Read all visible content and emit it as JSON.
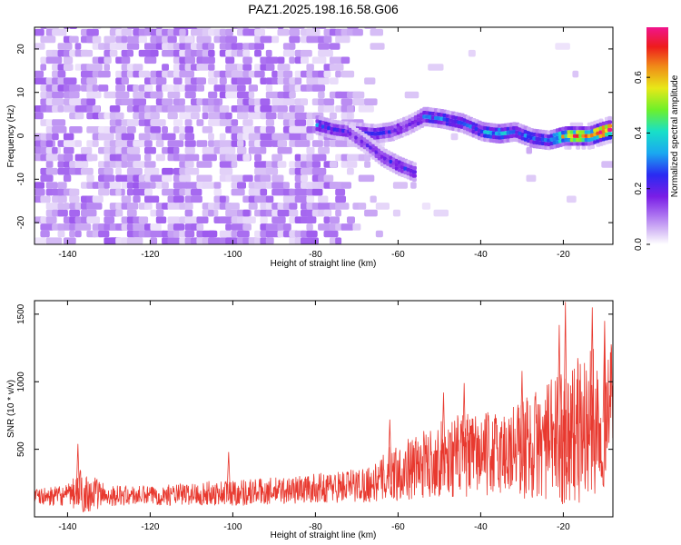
{
  "figure": {
    "title": "PAZ1.2025.198.16.58.G06"
  },
  "colors": {
    "snr_line": "#e8392f",
    "spectrogram_scale": [
      "#ffffff",
      "#d8c0f6",
      "#a86cf0",
      "#7a1ee6",
      "#2a2af2",
      "#1aa8f0",
      "#18e0c8",
      "#6ef02a",
      "#e8e818",
      "#f08a18",
      "#ee1c1c",
      "#f0148c"
    ]
  },
  "chart_data": [
    {
      "type": "heatmap",
      "title": "PAZ1.2025.198.16.58.G06",
      "xlabel": "Height of straight line (km)",
      "ylabel": "Frequency (Hz)",
      "xlim": [
        -148,
        -8
      ],
      "ylim": [
        -25,
        25
      ],
      "x_ticks": [
        -140,
        -120,
        -100,
        -80,
        -60,
        -40,
        -20
      ],
      "x_tick_labels": [
        "-140",
        "-120",
        "-100",
        "-80",
        "-60",
        "-40",
        "-20"
      ],
      "y_ticks": [
        -20,
        -10,
        0,
        10,
        20
      ],
      "y_tick_labels": [
        "-20",
        "-10",
        "0",
        "10",
        "20"
      ],
      "colorbar": {
        "label": "Normalized spectral amplitude",
        "range": [
          0,
          0.78
        ],
        "ticks": [
          0,
          0.2,
          0.4,
          0.6
        ],
        "tick_labels": [
          "0.0",
          "0.2",
          "0.4",
          "0.6"
        ]
      },
      "noise_region_end_km": -78,
      "noise_amplitude_range": [
        0.03,
        0.16
      ],
      "signal_ridge": [
        {
          "x": -80,
          "y": 2.0,
          "amp": 0.3
        },
        {
          "x": -76,
          "y": 1.0,
          "amp": 0.22
        },
        {
          "x": -72,
          "y": 0.5,
          "amp": 0.22
        },
        {
          "x": -66,
          "y": 0.0,
          "amp": 0.25
        },
        {
          "x": -62,
          "y": 0.5,
          "amp": 0.24
        },
        {
          "x": -58,
          "y": 2.0,
          "amp": 0.2
        },
        {
          "x": -54,
          "y": 4.0,
          "amp": 0.28
        },
        {
          "x": -50,
          "y": 3.5,
          "amp": 0.3
        },
        {
          "x": -45,
          "y": 2.5,
          "amp": 0.26
        },
        {
          "x": -40,
          "y": 0.5,
          "amp": 0.3
        },
        {
          "x": -36,
          "y": 0.0,
          "amp": 0.38
        },
        {
          "x": -32,
          "y": 0.5,
          "amp": 0.28
        },
        {
          "x": -28,
          "y": -1.0,
          "amp": 0.32
        },
        {
          "x": -24,
          "y": -1.5,
          "amp": 0.28
        },
        {
          "x": -20,
          "y": -0.5,
          "amp": 0.55
        },
        {
          "x": -17,
          "y": -0.5,
          "amp": 0.62
        },
        {
          "x": -14,
          "y": -0.5,
          "amp": 0.55
        },
        {
          "x": -11,
          "y": 0.5,
          "amp": 0.72
        },
        {
          "x": -9,
          "y": 1.0,
          "amp": 0.7
        }
      ],
      "branch_ridge": [
        {
          "x": -72,
          "y": 0.0,
          "amp": 0.18
        },
        {
          "x": -68,
          "y": -2.5,
          "amp": 0.2
        },
        {
          "x": -64,
          "y": -5.5,
          "amp": 0.22
        },
        {
          "x": -60,
          "y": -7.5,
          "amp": 0.24
        },
        {
          "x": -56,
          "y": -9.0,
          "amp": 0.26
        }
      ]
    },
    {
      "type": "line",
      "xlabel": "Height of straight line (km)",
      "ylabel": "SNR (10 * v/v)",
      "xlim": [
        -148,
        -8
      ],
      "ylim": [
        0,
        1600
      ],
      "x_ticks": [
        -140,
        -120,
        -100,
        -80,
        -60,
        -40,
        -20
      ],
      "x_tick_labels": [
        "-140",
        "-120",
        "-100",
        "-80",
        "-60",
        "-40",
        "-20"
      ],
      "y_ticks": [
        500,
        1000,
        1500
      ],
      "y_tick_labels": [
        "500",
        "1000",
        "1500"
      ],
      "envelope": {
        "x": [
          -148,
          -140,
          -137,
          -130,
          -120,
          -110,
          -100,
          -90,
          -80,
          -70,
          -65,
          -62,
          -55,
          -50,
          -45,
          -40,
          -35,
          -30,
          -25,
          -20,
          -15,
          -10,
          -8
        ],
        "baseline": [
          140,
          150,
          170,
          150,
          150,
          160,
          170,
          180,
          200,
          220,
          240,
          300,
          350,
          400,
          420,
          430,
          440,
          470,
          500,
          550,
          600,
          700,
          900
        ],
        "amplitude": [
          100,
          130,
          280,
          130,
          120,
          140,
          170,
          170,
          180,
          220,
          240,
          350,
          400,
          460,
          520,
          500,
          550,
          650,
          700,
          850,
          950,
          900,
          600
        ]
      },
      "peaks": [
        {
          "x": -137.5,
          "y": 540
        },
        {
          "x": -101,
          "y": 480
        },
        {
          "x": -62,
          "y": 720
        },
        {
          "x": -49,
          "y": 920
        },
        {
          "x": -44,
          "y": 990
        },
        {
          "x": -30,
          "y": 1080
        },
        {
          "x": -21,
          "y": 1420
        },
        {
          "x": -19.5,
          "y": 1590
        },
        {
          "x": -13,
          "y": 1550
        },
        {
          "x": -10,
          "y": 1450
        }
      ]
    }
  ]
}
